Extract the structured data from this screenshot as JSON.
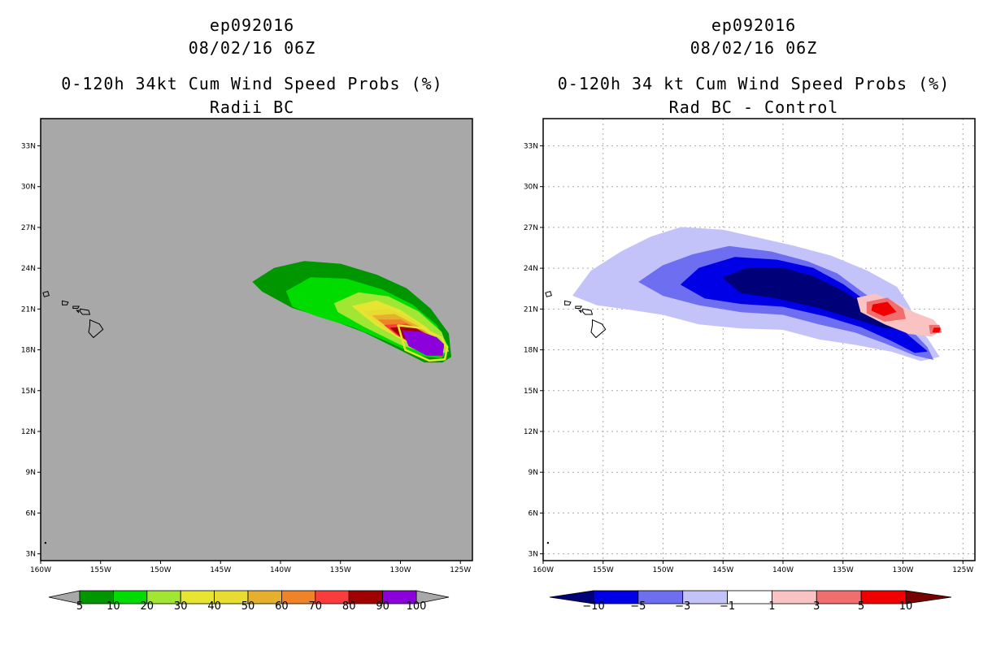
{
  "chart_data": [
    {
      "type": "heatmap",
      "storm_id": "ep092016",
      "datetime": "08/02/16 06Z",
      "title": "0-120h 34kt Cum Wind Speed Probs (%)",
      "subtitle": "Radii BC",
      "xlabel": "",
      "ylabel": "",
      "xlim": [
        -160,
        -124
      ],
      "ylim": [
        2.5,
        35
      ],
      "x_ticks": [
        "160W",
        "155W",
        "150W",
        "145W",
        "140W",
        "135W",
        "130W",
        "125W"
      ],
      "y_ticks": [
        "3N",
        "6N",
        "9N",
        "12N",
        "15N",
        "18N",
        "21N",
        "24N",
        "27N",
        "30N",
        "33N"
      ],
      "background_color": "#a8a8a8",
      "grid": false,
      "colorbar": {
        "levels": [
          "5",
          "10",
          "20",
          "30",
          "40",
          "50",
          "60",
          "70",
          "80",
          "90",
          "100"
        ],
        "colors": [
          "#009600",
          "#00dc00",
          "#a0e632",
          "#e6e632",
          "#e6dc32",
          "#e6af2d",
          "#f08228",
          "#fa3c3c",
          "#a00000",
          "#8c00dc"
        ],
        "end_colors": [
          "#a8a8a8",
          "#a8a8a8"
        ]
      },
      "contours": [
        {
          "level": "5-10",
          "color": "#009600",
          "lonlat": [
            [
              -142.3,
              23.0
            ],
            [
              -140.5,
              24.0
            ],
            [
              -138,
              24.5
            ],
            [
              -135,
              24.3
            ],
            [
              -132,
              23.5
            ],
            [
              -129.5,
              22.5
            ],
            [
              -127.5,
              21.0
            ],
            [
              -126,
              19.2
            ],
            [
              -125.8,
              17.5
            ],
            [
              -126.5,
              17.1
            ],
            [
              -128,
              17.1
            ],
            [
              -130,
              18.0
            ],
            [
              -133,
              19.3
            ],
            [
              -136,
              20.3
            ],
            [
              -139,
              21.1
            ],
            [
              -141.5,
              22.3
            ]
          ]
        },
        {
          "level": "10-20",
          "color": "#00dc00",
          "lonlat": [
            [
              -139.5,
              22.3
            ],
            [
              -137.5,
              23.3
            ],
            [
              -134.5,
              23.2
            ],
            [
              -131.5,
              22.4
            ],
            [
              -129,
              21.3
            ],
            [
              -127,
              19.8
            ],
            [
              -126,
              18.2
            ],
            [
              -126.6,
              17.4
            ],
            [
              -128.5,
              17.6
            ],
            [
              -131,
              18.6
            ],
            [
              -134,
              19.7
            ],
            [
              -137,
              20.5
            ],
            [
              -139,
              21.2
            ]
          ]
        },
        {
          "level": "20-30",
          "color": "#a0e632",
          "lonlat": [
            [
              -135.5,
              21.4
            ],
            [
              -133.5,
              22.2
            ],
            [
              -131,
              21.9
            ],
            [
              -128.5,
              20.8
            ],
            [
              -126.6,
              19.3
            ],
            [
              -126.0,
              17.9
            ],
            [
              -127.2,
              17.6
            ],
            [
              -130,
              18.4
            ],
            [
              -133,
              19.7
            ],
            [
              -135.2,
              20.8
            ]
          ]
        },
        {
          "level": "30-40",
          "color": "#e6e632",
          "lonlat": [
            [
              -134,
              21.2
            ],
            [
              -132,
              21.6
            ],
            [
              -130,
              20.9
            ],
            [
              -127.8,
              19.6
            ],
            [
              -126.3,
              18.3
            ],
            [
              -127.3,
              17.8
            ],
            [
              -129.5,
              18.6
            ],
            [
              -132,
              19.8
            ]
          ]
        },
        {
          "level": "40-50",
          "color": "#e6dc32",
          "lonlat": [
            [
              -133,
              20.8
            ],
            [
              -131,
              21.0
            ],
            [
              -129,
              20.2
            ],
            [
              -127.2,
              19.0
            ],
            [
              -126.4,
              18.1
            ],
            [
              -127.8,
              18.0
            ],
            [
              -130,
              18.9
            ],
            [
              -131.8,
              19.9
            ]
          ]
        },
        {
          "level": "50-60",
          "color": "#e6af2d",
          "lonlat": [
            [
              -132.3,
              20.5
            ],
            [
              -130.5,
              20.6
            ],
            [
              -128.5,
              19.7
            ],
            [
              -126.8,
              18.6
            ],
            [
              -126.5,
              17.9
            ],
            [
              -128,
              18.1
            ],
            [
              -130.2,
              19.1
            ]
          ]
        },
        {
          "level": "60-70",
          "color": "#f08228",
          "lonlat": [
            [
              -131.8,
              20.2
            ],
            [
              -130,
              20.2
            ],
            [
              -128,
              19.3
            ],
            [
              -126.6,
              18.3
            ],
            [
              -126.6,
              17.8
            ],
            [
              -128.5,
              18.3
            ],
            [
              -130.5,
              19.3
            ]
          ]
        },
        {
          "level": "70-80",
          "color": "#fa3c3c",
          "lonlat": [
            [
              -131.3,
              19.8
            ],
            [
              -129.5,
              19.9
            ],
            [
              -127.8,
              19.1
            ],
            [
              -126.4,
              18.2
            ],
            [
              -126.6,
              17.5
            ],
            [
              -128.5,
              18.2
            ],
            [
              -130.3,
              19.1
            ]
          ]
        },
        {
          "level": "80-90",
          "color": "#a00000",
          "lonlat": [
            [
              -130.8,
              19.6
            ],
            [
              -129,
              19.7
            ],
            [
              -127.6,
              19.0
            ],
            [
              -126.4,
              18.3
            ],
            [
              -126.6,
              17.6
            ],
            [
              -128.2,
              18.2
            ],
            [
              -130,
              19.0
            ]
          ]
        },
        {
          "level": "90-100",
          "color": "#8c00dc",
          "lonlat": [
            [
              -129.8,
              19.4
            ],
            [
              -128.3,
              19.3
            ],
            [
              -127,
              18.9
            ],
            [
              -126.4,
              18.4
            ],
            [
              -126.5,
              17.6
            ],
            [
              -127.8,
              17.6
            ],
            [
              -129.3,
              18.3
            ]
          ]
        }
      ],
      "yellow_edge": [
        [
          -130.2,
          19.8
        ],
        [
          -128.2,
          19.6
        ],
        [
          -126.6,
          18.9
        ],
        [
          -126.1,
          18.2
        ],
        [
          -126.3,
          17.3
        ],
        [
          -127.6,
          17.2
        ],
        [
          -129.6,
          18.0
        ]
      ]
    },
    {
      "type": "heatmap",
      "storm_id": "ep092016",
      "datetime": "08/02/16 06Z",
      "title": "0-120h 34 kt Cum Wind Speed Probs (%)",
      "subtitle": "Rad BC - Control",
      "xlabel": "",
      "ylabel": "",
      "xlim": [
        -160,
        -124
      ],
      "ylim": [
        2.5,
        35
      ],
      "x_ticks": [
        "160W",
        "155W",
        "150W",
        "145W",
        "140W",
        "135W",
        "130W",
        "125W"
      ],
      "y_ticks": [
        "3N",
        "6N",
        "9N",
        "12N",
        "15N",
        "18N",
        "21N",
        "24N",
        "27N",
        "30N",
        "33N"
      ],
      "background_color": "#ffffff",
      "grid": true,
      "colorbar": {
        "levels": [
          "-10",
          "-5",
          "-3",
          "-1",
          "1",
          "3",
          "5",
          "10"
        ],
        "colors": [
          "#0000e6",
          "#6e6ef0",
          "#c3c3fa",
          "#ffffff",
          "#fac3c3",
          "#f06e6e",
          "#f00000"
        ],
        "end_colors": [
          "#000078",
          "#780000"
        ]
      },
      "contours": [
        {
          "level": "-1 to -3",
          "color": "#c3c3fa",
          "lonlat": [
            [
              -157.5,
              22.0
            ],
            [
              -156,
              23.8
            ],
            [
              -153.5,
              25.2
            ],
            [
              -151,
              26.3
            ],
            [
              -148.5,
              27.0
            ],
            [
              -145,
              26.8
            ],
            [
              -142,
              26.2
            ],
            [
              -139,
              25.6
            ],
            [
              -136,
              24.9
            ],
            [
              -133,
              23.8
            ],
            [
              -130.5,
              22.6
            ],
            [
              -129.5,
              21.2
            ],
            [
              -128.8,
              19.8
            ],
            [
              -127.8,
              18.6
            ],
            [
              -127.0,
              17.5
            ],
            [
              -128.5,
              17.2
            ],
            [
              -131,
              17.9
            ],
            [
              -134,
              18.4
            ],
            [
              -137,
              18.8
            ],
            [
              -140,
              19.5
            ],
            [
              -143.5,
              19.6
            ],
            [
              -147,
              19.9
            ],
            [
              -150,
              20.6
            ],
            [
              -153,
              21.0
            ],
            [
              -155.5,
              21.3
            ]
          ]
        },
        {
          "level": "-3 to -5",
          "color": "#6e6ef0",
          "lonlat": [
            [
              -152,
              23.0
            ],
            [
              -150,
              24.2
            ],
            [
              -147.5,
              25.0
            ],
            [
              -144.5,
              25.6
            ],
            [
              -141,
              25.2
            ],
            [
              -138,
              24.5
            ],
            [
              -135.5,
              23.6
            ],
            [
              -133.5,
              22.3
            ],
            [
              -131.5,
              21.0
            ],
            [
              -129.5,
              19.6
            ],
            [
              -128,
              18.2
            ],
            [
              -127.5,
              17.3
            ],
            [
              -129,
              17.6
            ],
            [
              -131.5,
              18.5
            ],
            [
              -134,
              19.3
            ],
            [
              -137,
              19.9
            ],
            [
              -140,
              20.6
            ],
            [
              -143.5,
              20.8
            ],
            [
              -147,
              21.3
            ],
            [
              -150,
              22.0
            ]
          ]
        },
        {
          "level": "-5 to -10",
          "color": "#0000e6",
          "lonlat": [
            [
              -148.5,
              22.8
            ],
            [
              -147,
              24.0
            ],
            [
              -144,
              24.8
            ],
            [
              -140.5,
              24.6
            ],
            [
              -137.5,
              24.0
            ],
            [
              -135,
              22.8
            ],
            [
              -133,
              21.5
            ],
            [
              -131,
              20.2
            ],
            [
              -129.5,
              19.0
            ],
            [
              -128,
              17.9
            ],
            [
              -129,
              17.8
            ],
            [
              -131,
              18.7
            ],
            [
              -133.5,
              19.7
            ],
            [
              -136.5,
              20.5
            ],
            [
              -140,
              21.2
            ],
            [
              -143.5,
              21.4
            ],
            [
              -146.5,
              21.8
            ]
          ]
        },
        {
          "level": "< -10",
          "color": "#000078",
          "lonlat": [
            [
              -145,
              23.3
            ],
            [
              -143,
              24.0
            ],
            [
              -140,
              24.0
            ],
            [
              -137.5,
              23.4
            ],
            [
              -135,
              22.3
            ],
            [
              -133,
              21.2
            ],
            [
              -131,
              20.2
            ],
            [
              -130,
              19.6
            ],
            [
              -131.5,
              19.6
            ],
            [
              -134,
              20.3
            ],
            [
              -137,
              21.1
            ],
            [
              -140.5,
              21.8
            ],
            [
              -143.5,
              22.2
            ]
          ]
        },
        {
          "level": "1 to 3",
          "color": "#fac3c3",
          "lonlat": [
            [
              -133.8,
              21.8
            ],
            [
              -132.3,
              22.1
            ],
            [
              -130.5,
              21.4
            ],
            [
              -129,
              20.7
            ],
            [
              -127.5,
              20.2
            ],
            [
              -126.8,
              19.5
            ],
            [
              -127.6,
              19.0
            ],
            [
              -129.5,
              19.2
            ],
            [
              -131.5,
              19.9
            ],
            [
              -133.5,
              20.8
            ]
          ]
        },
        {
          "level": "3 to 5",
          "color": "#f06e6e",
          "lonlat": [
            [
              -133,
              21.5
            ],
            [
              -131.3,
              21.8
            ],
            [
              -130,
              21.0
            ],
            [
              -129.8,
              20.3
            ],
            [
              -131.5,
              20.1
            ],
            [
              -133,
              20.7
            ]
          ]
        },
        {
          "level": "3 to 5 b",
          "color": "#f06e6e",
          "lonlat": [
            [
              -127.8,
              19.8
            ],
            [
              -127.0,
              19.8
            ],
            [
              -126.8,
              19.3
            ],
            [
              -127.7,
              19.2
            ]
          ]
        },
        {
          "level": "5 to 10",
          "color": "#f00000",
          "lonlat": [
            [
              -132.5,
              21.3
            ],
            [
              -131.3,
              21.5
            ],
            [
              -130.6,
              20.8
            ],
            [
              -131.6,
              20.5
            ],
            [
              -132.6,
              20.9
            ]
          ]
        },
        {
          "level": "5 to 10 b",
          "color": "#f00000",
          "lonlat": [
            [
              -127.4,
              19.6
            ],
            [
              -126.9,
              19.6
            ],
            [
              -127.0,
              19.3
            ],
            [
              -127.5,
              19.3
            ]
          ]
        }
      ]
    }
  ]
}
